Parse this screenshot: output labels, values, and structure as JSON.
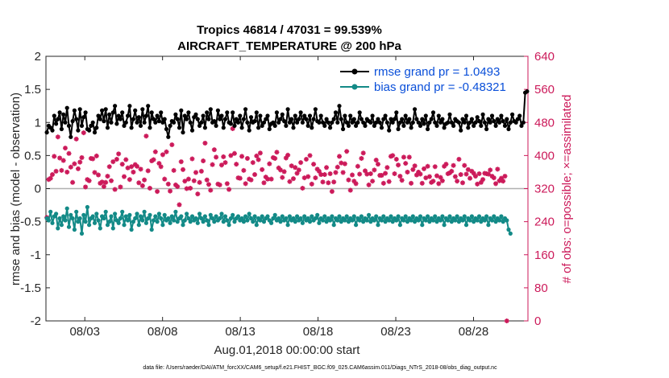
{
  "chart_data": {
    "type": "line",
    "title_line1": "Tropics 46814 / 47031 = 99.539%",
    "title_line2": "AIRCRAFT_TEMPERATURE @ 200 hPa",
    "ylabel_left": "rmse and bias (model - observation)",
    "ylabel_right": "# of obs: o=possible; ×=assimilated",
    "xlabel": "Aug.01,2018 00:00:00 start",
    "footer": "data file: /Users/raeder/DAI/ATM_forcXX/CAM6_setup/f.e21.FHIST_BGC.f09_025.CAM6assim.011/Diags_NTrS_2018-08/obs_diag_output.nc",
    "ylim_left": [
      -2,
      2
    ],
    "ylim_right": [
      0,
      640
    ],
    "xlim_days": [
      0.5,
      31.5
    ],
    "left_ticks": [
      "-2",
      "-1.5",
      "-1",
      "-0.5",
      "0",
      "0.5",
      "1",
      "1.5",
      "2"
    ],
    "left_tick_values": [
      -2,
      -1.5,
      -1,
      -0.5,
      0,
      0.5,
      1,
      1.5,
      2
    ],
    "right_ticks": [
      "0",
      "80",
      "160",
      "240",
      "320",
      "400",
      "480",
      "560",
      "640"
    ],
    "right_tick_values": [
      0,
      80,
      160,
      240,
      320,
      400,
      480,
      560,
      640
    ],
    "x_ticks": [
      "08/03",
      "08/08",
      "08/13",
      "08/18",
      "08/23",
      "08/28"
    ],
    "x_tick_days": [
      3,
      8,
      13,
      18,
      23,
      28
    ],
    "colors": {
      "rmse": "#000000",
      "bias": "#138a87",
      "obs": "#cc1a5a",
      "zero_line": "#b0b0b0",
      "legend_text": "#0a4fd9"
    },
    "series": [
      {
        "name": "rmse grand pr = 1.0493",
        "key": "rmse",
        "values": [
          0.85,
          0.95,
          0.92,
          0.88,
          1.1,
          0.98,
          1.05,
          1.15,
          0.9,
          1.12,
          1.0,
          1.22,
          0.95,
          0.78,
          1.02,
          1.18,
          1.05,
          0.88,
          1.2,
          0.95,
          1.08,
          1.15,
          0.9,
          0.88,
          0.95,
          1.0,
          0.85,
          0.92,
          1.1,
          1.05,
          1.18,
          1.02,
          1.2,
          0.92,
          1.12,
          1.0,
          1.15,
          1.25,
          0.98,
          1.1,
          1.05,
          1.15,
          0.95,
          1.0,
          1.1,
          1.25,
          0.92,
          1.05,
          1.18,
          1.0,
          1.08,
          0.95,
          1.2,
          1.0,
          1.1,
          1.25,
          0.92,
          1.15,
          1.05,
          1.0,
          1.1,
          1.02,
          1.15,
          1.0,
          1.05,
          0.9,
          0.78,
          0.95,
          1.02,
          1.0,
          1.12,
          1.05,
          0.92,
          1.18,
          0.85,
          1.1,
          1.05,
          1.15,
          1.0,
          0.88,
          1.08,
          1.12,
          1.05,
          0.95,
          1.0,
          1.1,
          0.92,
          1.15,
          1.05,
          1.2,
          1.0,
          1.02,
          0.95,
          1.18,
          1.05,
          1.1,
          0.92,
          1.05,
          1.15,
          1.0,
          0.98,
          1.15,
          0.95,
          1.05,
          1.0,
          1.1,
          0.92,
          1.05,
          1.2,
          1.0,
          0.88,
          1.08,
          1.0,
          1.02,
          1.15,
          0.92,
          1.1,
          0.95,
          1.0,
          1.05,
          1.1,
          0.9,
          0.98,
          1.0,
          0.95,
          1.15,
          1.0,
          1.05,
          1.12,
          1.02,
          0.95,
          1.2,
          1.0,
          1.05,
          0.92,
          1.1,
          1.0,
          1.05,
          1.15,
          1.0,
          1.1,
          1.05,
          0.95,
          1.1,
          0.92,
          1.05,
          1.2,
          1.02,
          1.0,
          1.1,
          1.0,
          0.95,
          1.05,
          1.0,
          0.92,
          1.0,
          1.05,
          1.15,
          1.0,
          1.25,
          1.05,
          0.9,
          1.1,
          1.0,
          0.95,
          1.1,
          1.0,
          1.05,
          0.95,
          1.0,
          1.15,
          1.05,
          1.0,
          0.95,
          1.05,
          1.02,
          1.0,
          1.1,
          0.95,
          1.0,
          1.05,
          1.0,
          0.92,
          1.05,
          1.1,
          1.0,
          0.88,
          1.05,
          1.0,
          1.05,
          1.15,
          0.9,
          1.0,
          1.05,
          0.95,
          1.1,
          1.0,
          1.05,
          0.92,
          1.0,
          1.2,
          1.05,
          1.0,
          0.95,
          1.05,
          0.98,
          1.1,
          0.9,
          1.0,
          1.05,
          1.15,
          1.0,
          0.95,
          1.1,
          1.0,
          1.05,
          0.92,
          0.98,
          1.0,
          1.12,
          1.0,
          0.95,
          1.05,
          1.02,
          1.0,
          0.88,
          1.05,
          1.0,
          1.1,
          0.92,
          1.0,
          1.05,
          0.95,
          1.0,
          1.08,
          1.02,
          0.95,
          1.12,
          1.0,
          0.9,
          1.05,
          1.0,
          1.1,
          1.02,
          0.95,
          1.05,
          1.0,
          1.1,
          1.02,
          0.95,
          1.05,
          0.9,
          1.0,
          1.12,
          1.02,
          1.0,
          1.05,
          1.1,
          0.95,
          1.0,
          1.45,
          1.47
        ]
      },
      {
        "name": "bias grand pr = -0.48321",
        "key": "bias",
        "values": [
          -0.45,
          -0.48,
          -0.35,
          -0.52,
          -0.42,
          -0.38,
          -0.6,
          -0.45,
          -0.55,
          -0.42,
          -0.48,
          -0.3,
          -0.58,
          -0.4,
          -0.45,
          -0.62,
          -0.35,
          -0.5,
          -0.45,
          -0.68,
          -0.4,
          -0.5,
          -0.28,
          -0.55,
          -0.45,
          -0.42,
          -0.52,
          -0.38,
          -0.48,
          -0.6,
          -0.42,
          -0.45,
          -0.35,
          -0.55,
          -0.5,
          -0.42,
          -0.6,
          -0.38,
          -0.48,
          -0.52,
          -0.45,
          -0.35,
          -0.55,
          -0.42,
          -0.48,
          -0.4,
          -0.62,
          -0.5,
          -0.45,
          -0.38,
          -0.55,
          -0.42,
          -0.48,
          -0.35,
          -0.52,
          -0.45,
          -0.4,
          -0.62,
          -0.48,
          -0.42,
          -0.5,
          -0.38,
          -0.45,
          -0.55,
          -0.4,
          -0.48,
          -0.45,
          -0.52,
          -0.42,
          -0.48,
          -0.35,
          -0.5,
          -0.45,
          -0.42,
          -0.55,
          -0.48,
          -0.38,
          -0.45,
          -0.5,
          -0.42,
          -0.48,
          -0.45,
          -0.52,
          -0.38,
          -0.45,
          -0.5,
          -0.42,
          -0.48,
          -0.55,
          -0.4,
          -0.45,
          -0.5,
          -0.42,
          -0.48,
          -0.45,
          -0.38,
          -0.5,
          -0.42,
          -0.48,
          -0.55,
          -0.45,
          -0.4,
          -0.5,
          -0.45,
          -0.42,
          -0.48,
          -0.45,
          -0.5,
          -0.42,
          -0.48,
          -0.38,
          -0.45,
          -0.5,
          -0.42,
          -0.55,
          -0.45,
          -0.48,
          -0.42,
          -0.5,
          -0.45,
          -0.42,
          -0.48,
          -0.52,
          -0.45,
          -0.4,
          -0.48,
          -0.45,
          -0.5,
          -0.42,
          -0.48,
          -0.45,
          -0.55,
          -0.42,
          -0.48,
          -0.45,
          -0.5,
          -0.42,
          -0.48,
          -0.45,
          -0.52,
          -0.42,
          -0.48,
          -0.45,
          -0.5,
          -0.42,
          -0.48,
          -0.45,
          -0.4,
          -0.52,
          -0.45,
          -0.48,
          -0.42,
          -0.5,
          -0.45,
          -0.48,
          -0.42,
          -0.55,
          -0.45,
          -0.48,
          -0.42,
          -0.5,
          -0.45,
          -0.48,
          -0.42,
          -0.5,
          -0.45,
          -0.48,
          -0.42,
          -0.55,
          -0.45,
          -0.48,
          -0.42,
          -0.5,
          -0.45,
          -0.48,
          -0.4,
          -0.5,
          -0.45,
          -0.48,
          -0.42,
          -0.55,
          -0.45,
          -0.48,
          -0.42,
          -0.5,
          -0.45,
          -0.48,
          -0.42,
          -0.5,
          -0.45,
          -0.48,
          -0.42,
          -0.55,
          -0.45,
          -0.48,
          -0.42,
          -0.5,
          -0.45,
          -0.48,
          -0.42,
          -0.5,
          -0.45,
          -0.48,
          -0.42,
          -0.55,
          -0.45,
          -0.48,
          -0.42,
          -0.5,
          -0.45,
          -0.48,
          -0.42,
          -0.5,
          -0.45,
          -0.48,
          -0.42,
          -0.55,
          -0.45,
          -0.48,
          -0.42,
          -0.5,
          -0.45,
          -0.48,
          -0.42,
          -0.5,
          -0.45,
          -0.48,
          -0.42,
          -0.55,
          -0.45,
          -0.48,
          -0.42,
          -0.5,
          -0.45,
          -0.48,
          -0.42,
          -0.5,
          -0.45,
          -0.48,
          -0.42,
          -0.55,
          -0.45,
          -0.48,
          -0.42,
          -0.5,
          -0.45,
          -0.48,
          -0.42,
          -0.5,
          -0.45,
          -0.48,
          -0.62,
          -0.68
        ]
      },
      {
        "name": "obs possible",
        "key": "obs_possible",
        "values": [
          250,
          342,
          345,
          354,
          398,
          362,
          445,
          394,
          364,
          388,
          418,
          360,
          405,
          372,
          335,
          380,
          440,
          368,
          384,
          395,
          455,
          324,
          342,
          339,
          393,
          392,
          359,
          399,
          353,
          333,
          336,
          325,
          335,
          350,
          373,
          339,
          385,
          318,
          391,
          404,
          324,
          379,
          349,
          390,
          370,
          342,
          373,
          360,
          378,
          374,
          334,
          367,
          327,
          341,
          447,
          363,
          321,
          387,
          390,
          409,
          313,
          381,
          373,
          402,
          343,
          409,
          331,
          314,
          426,
          364,
          329,
          325,
          281,
          385,
          366,
          338,
          320,
          343,
          321,
          392,
          339,
          359,
          307,
          335,
          362,
          387,
          430,
          341,
          330,
          316,
          378,
          414,
          396,
          331,
          329,
          377,
          397,
          383,
          332,
          318,
          400,
          465,
          405,
          379,
          346,
          345,
          398,
          364,
          332,
          393,
          343,
          341,
          383,
          354,
          399,
          390,
          406,
          366,
          334,
          348,
          343,
          380,
          343,
          395,
          393,
          408,
          370,
          365,
          347,
          361,
          394,
          401,
          337,
          375,
          344,
          371,
          357,
          365,
          383,
          321,
          346,
          391,
          349,
          400,
          331,
          379,
          346,
          367,
          362,
          354,
          336,
          354,
          371,
          334,
          356,
          313,
          336,
          359,
          372,
          398,
          382,
          359,
          380,
          410,
          341,
          316,
          353,
          338,
          332,
          374,
          355,
          393,
          406,
          363,
          355,
          329,
          356,
          338,
          365,
          389,
          379,
          352,
          352,
          333,
          357,
          371,
          337,
          398,
          400,
          356,
          391,
          377,
          350,
          340,
          396,
          381,
          360,
          396,
          333,
          366,
          375,
          353,
          360,
          355,
          333,
          368,
          346,
          374,
          349,
          335,
          338,
          373,
          351,
          332,
          347,
          339,
          374,
          379,
          356,
          358,
          362,
          376,
          349,
          338,
          391,
          354,
          334,
          376,
          355,
          366,
          345,
          362,
          357,
          350,
          331,
          356,
          335,
          342,
          357,
          356,
          355,
          365,
          350,
          346,
          332,
          367,
          339,
          345,
          338,
          350,
          0
        ]
      }
    ],
    "legend_rmse": "rmse grand pr = 1.0493",
    "legend_bias": "bias grand pr = -0.48321"
  }
}
